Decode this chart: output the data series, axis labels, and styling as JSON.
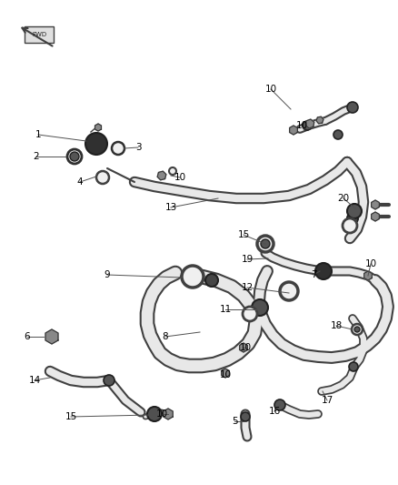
{
  "background_color": "#ffffff",
  "line_color": "#404040",
  "fig_width": 4.38,
  "fig_height": 5.33,
  "dpi": 100,
  "labels": [
    [
      "1",
      55,
      148
    ],
    [
      "2",
      52,
      172
    ],
    [
      "3",
      138,
      160
    ],
    [
      "4",
      105,
      198
    ],
    [
      "5",
      270,
      462
    ],
    [
      "6",
      28,
      368
    ],
    [
      "7",
      352,
      298
    ],
    [
      "8",
      192,
      368
    ],
    [
      "9",
      130,
      302
    ],
    [
      "10",
      210,
      195
    ],
    [
      "10",
      305,
      100
    ],
    [
      "10",
      337,
      138
    ],
    [
      "10",
      405,
      290
    ],
    [
      "10",
      277,
      382
    ],
    [
      "10",
      255,
      410
    ],
    [
      "10",
      185,
      455
    ],
    [
      "11",
      254,
      340
    ],
    [
      "12",
      278,
      318
    ],
    [
      "13",
      196,
      228
    ],
    [
      "14",
      48,
      416
    ],
    [
      "15",
      84,
      455
    ],
    [
      "15",
      275,
      260
    ],
    [
      "16",
      308,
      450
    ],
    [
      "17",
      368,
      440
    ],
    [
      "18",
      378,
      360
    ],
    [
      "19",
      282,
      285
    ],
    [
      "20",
      385,
      218
    ]
  ]
}
